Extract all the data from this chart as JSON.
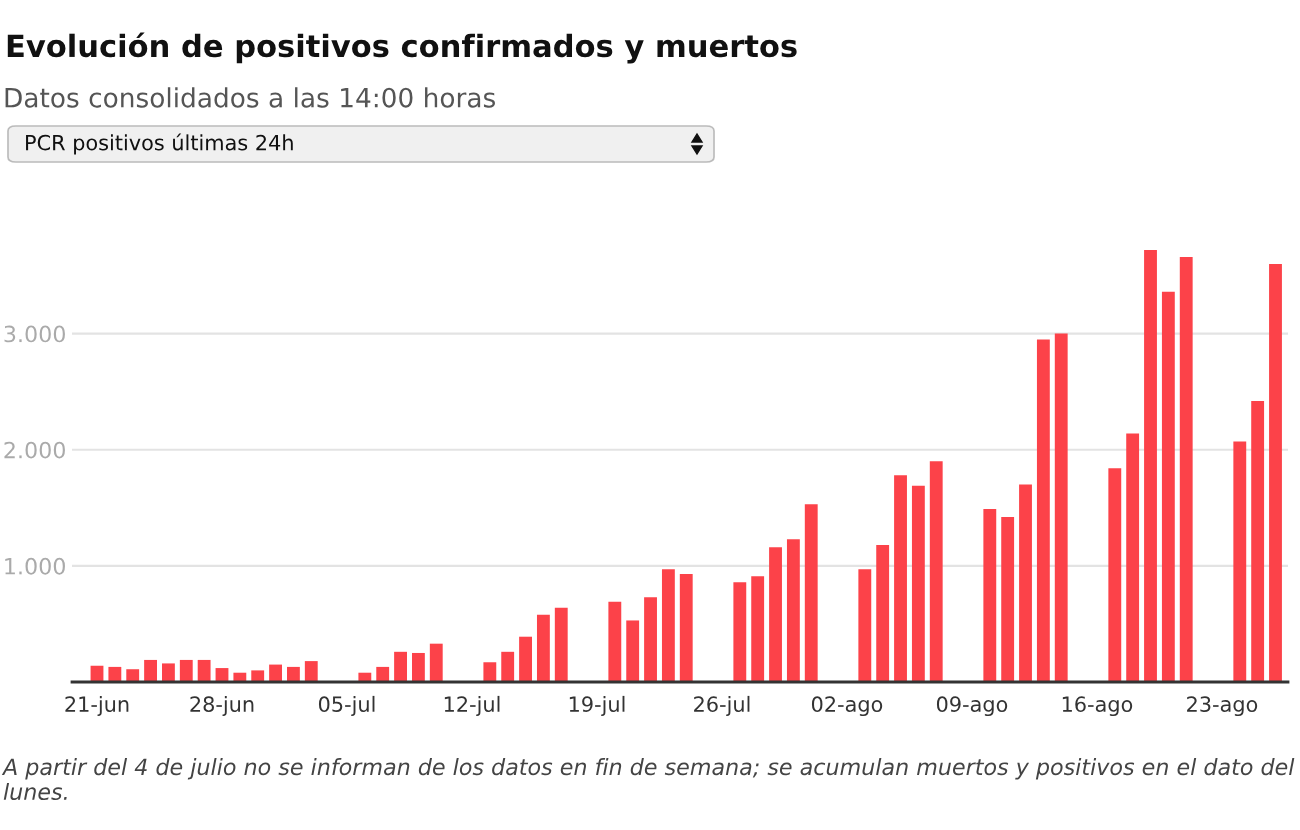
{
  "chart_data": {
    "type": "bar",
    "title": "Evolución de positivos confirmados y muertos",
    "subtitle": "Datos consolidados a las 14:00 horas",
    "annotations": [
      "PCR positivos últimas 24h",
      "A partir del 4 de julio no se informan de los datos en fin de semana; se acumulan muertos y positivos en el dato del lunes."
    ],
    "categories": [
      "21-jun",
      null,
      null,
      null,
      null,
      null,
      null,
      "28-jun",
      null,
      null,
      null,
      null,
      null,
      null,
      "05-jul",
      null,
      null,
      null,
      null,
      null,
      null,
      "12-jul",
      null,
      null,
      null,
      null,
      null,
      null,
      "19-jul",
      null,
      null,
      null,
      null,
      null,
      null,
      "26-jul",
      null,
      null,
      null,
      null,
      null,
      null,
      "02-ago",
      null,
      null,
      null,
      null,
      null,
      null,
      "09-ago",
      null,
      null,
      null,
      null,
      null,
      null,
      "16-ago",
      null,
      null,
      null,
      null,
      null,
      null,
      "23-ago",
      null,
      null,
      null
    ],
    "values": [
      140,
      130,
      110,
      190,
      160,
      190,
      190,
      120,
      80,
      100,
      150,
      130,
      180,
      null,
      null,
      80,
      130,
      260,
      250,
      330,
      null,
      null,
      170,
      260,
      390,
      580,
      640,
      null,
      null,
      690,
      530,
      730,
      970,
      930,
      null,
      null,
      860,
      910,
      1160,
      1230,
      1530,
      null,
      null,
      970,
      1180,
      1780,
      1690,
      1900,
      null,
      null,
      1490,
      1420,
      1700,
      2950,
      3000,
      null,
      null,
      1840,
      2140,
      3720,
      3360,
      3660,
      null,
      null,
      2070,
      2420,
      3600
    ],
    "color": "#fc4249",
    "ylim": [
      0,
      3720
    ],
    "yticks": [
      {
        "value": 1000,
        "label": "1.000"
      },
      {
        "value": 2000,
        "label": "2.000"
      },
      {
        "value": 3000,
        "label": "3.000"
      }
    ],
    "grid": "y"
  }
}
